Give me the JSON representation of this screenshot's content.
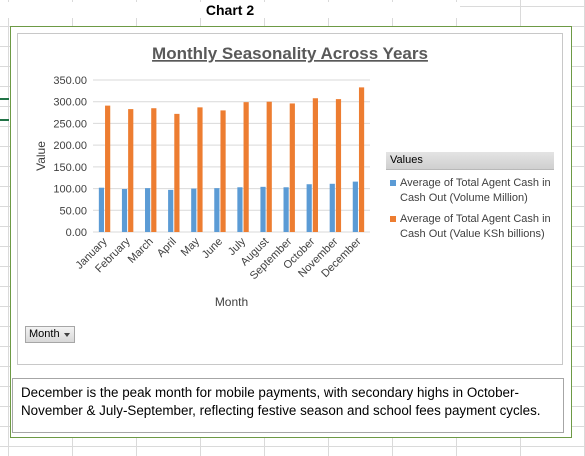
{
  "sheet": {
    "title": "Chart 2"
  },
  "chart_data": {
    "type": "bar",
    "title": "Monthly Seasonality Across Years",
    "xlabel": "Month",
    "ylabel": "Value",
    "ylim": [
      0,
      350
    ],
    "yticks": [
      "0.00",
      "50.00",
      "100.00",
      "150.00",
      "200.00",
      "250.00",
      "300.00",
      "350.00"
    ],
    "grid": true,
    "legend_placement": "right",
    "legend_header": "Values",
    "categories": [
      "January",
      "February",
      "March",
      "April",
      "May",
      "June",
      "July",
      "August",
      "September",
      "October",
      "November",
      "December"
    ],
    "series": [
      {
        "name": "Average of Total Agent Cash in Cash Out (Volume Million)",
        "color": "#5b9bd5",
        "values": [
          102,
          99,
          101,
          97,
          100,
          101,
          103,
          104,
          103,
          110,
          111,
          116
        ]
      },
      {
        "name": "Average of Total Agent Cash in Cash Out (Value KSh billions)",
        "color": "#ed7d31",
        "values": [
          291,
          283,
          285,
          272,
          287,
          280,
          299,
          300,
          296,
          308,
          306,
          333
        ]
      }
    ]
  },
  "field_button": {
    "label": "Month"
  },
  "note": {
    "text": "December is the peak month for mobile payments, with secondary highs in October-November & July-September, reflecting festive season and school fees payment cycles."
  }
}
